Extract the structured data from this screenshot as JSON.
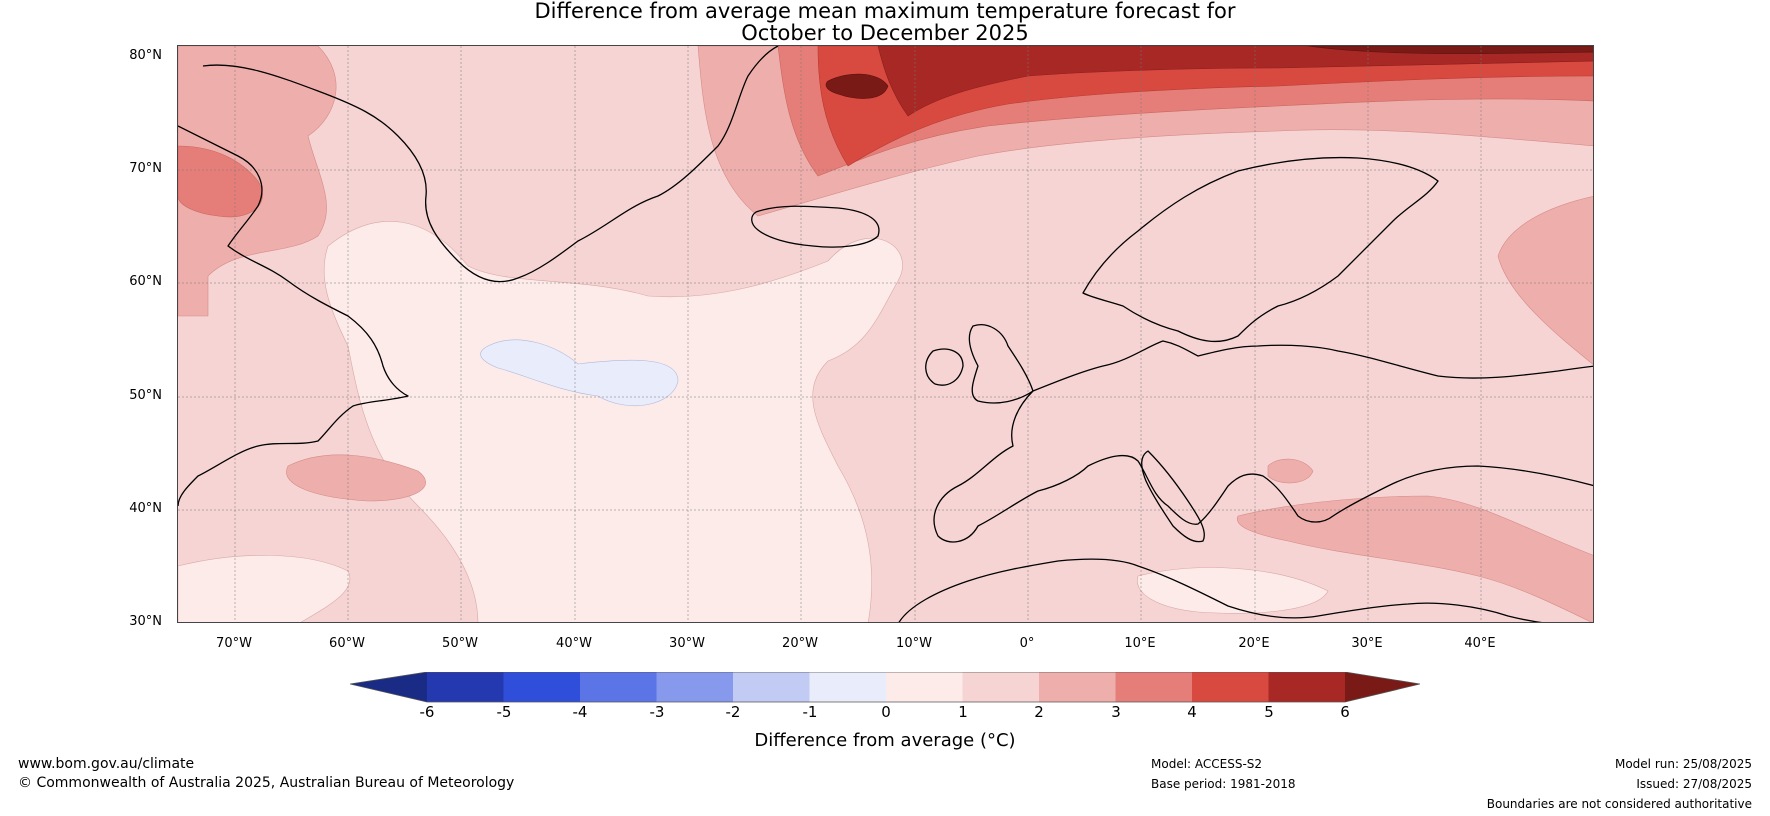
{
  "title": {
    "line1": "Difference from average mean maximum temperature forecast for",
    "line2": "October to December 2025"
  },
  "map": {
    "lat_labels": [
      "80°N",
      "70°N",
      "60°N",
      "50°N",
      "40°N",
      "30°N"
    ],
    "lon_labels": [
      "70°W",
      "60°W",
      "50°W",
      "40°W",
      "30°W",
      "20°W",
      "10°W",
      "0°",
      "10°E",
      "20°E",
      "30°E",
      "40°E"
    ],
    "lat_range": [
      30,
      81
    ],
    "lon_range": [
      -75,
      50
    ],
    "projection": "equirectangular",
    "grid": true,
    "background_color": "#f5d4d3"
  },
  "colorbar": {
    "label": "Difference from average (°C)",
    "ticks": [
      "-6",
      "-5",
      "-4",
      "-3",
      "-2",
      "-1",
      "0",
      "1",
      "2",
      "3",
      "4",
      "5",
      "6"
    ],
    "colors": [
      "#1a2b85",
      "#2439b0",
      "#2f4fdb",
      "#5b74e6",
      "#8799ec",
      "#c2cbf3",
      "#e9ecfa",
      "#fcebe9",
      "#f5d4d3",
      "#eeaeab",
      "#e57e78",
      "#d84a40",
      "#a82826",
      "#7a1a16"
    ]
  },
  "footer": {
    "website": "www.bom.gov.au/climate",
    "copyright": "© Commonwealth of Australia 2025, Australian Bureau of Meteorology",
    "model": "Model: ACCESS-S2",
    "base_period": "Base period: 1981-2018",
    "model_run": "Model run: 25/08/2025",
    "issued": "Issued: 27/08/2025",
    "disclaimer": "Boundaries are not considered authoritative"
  }
}
